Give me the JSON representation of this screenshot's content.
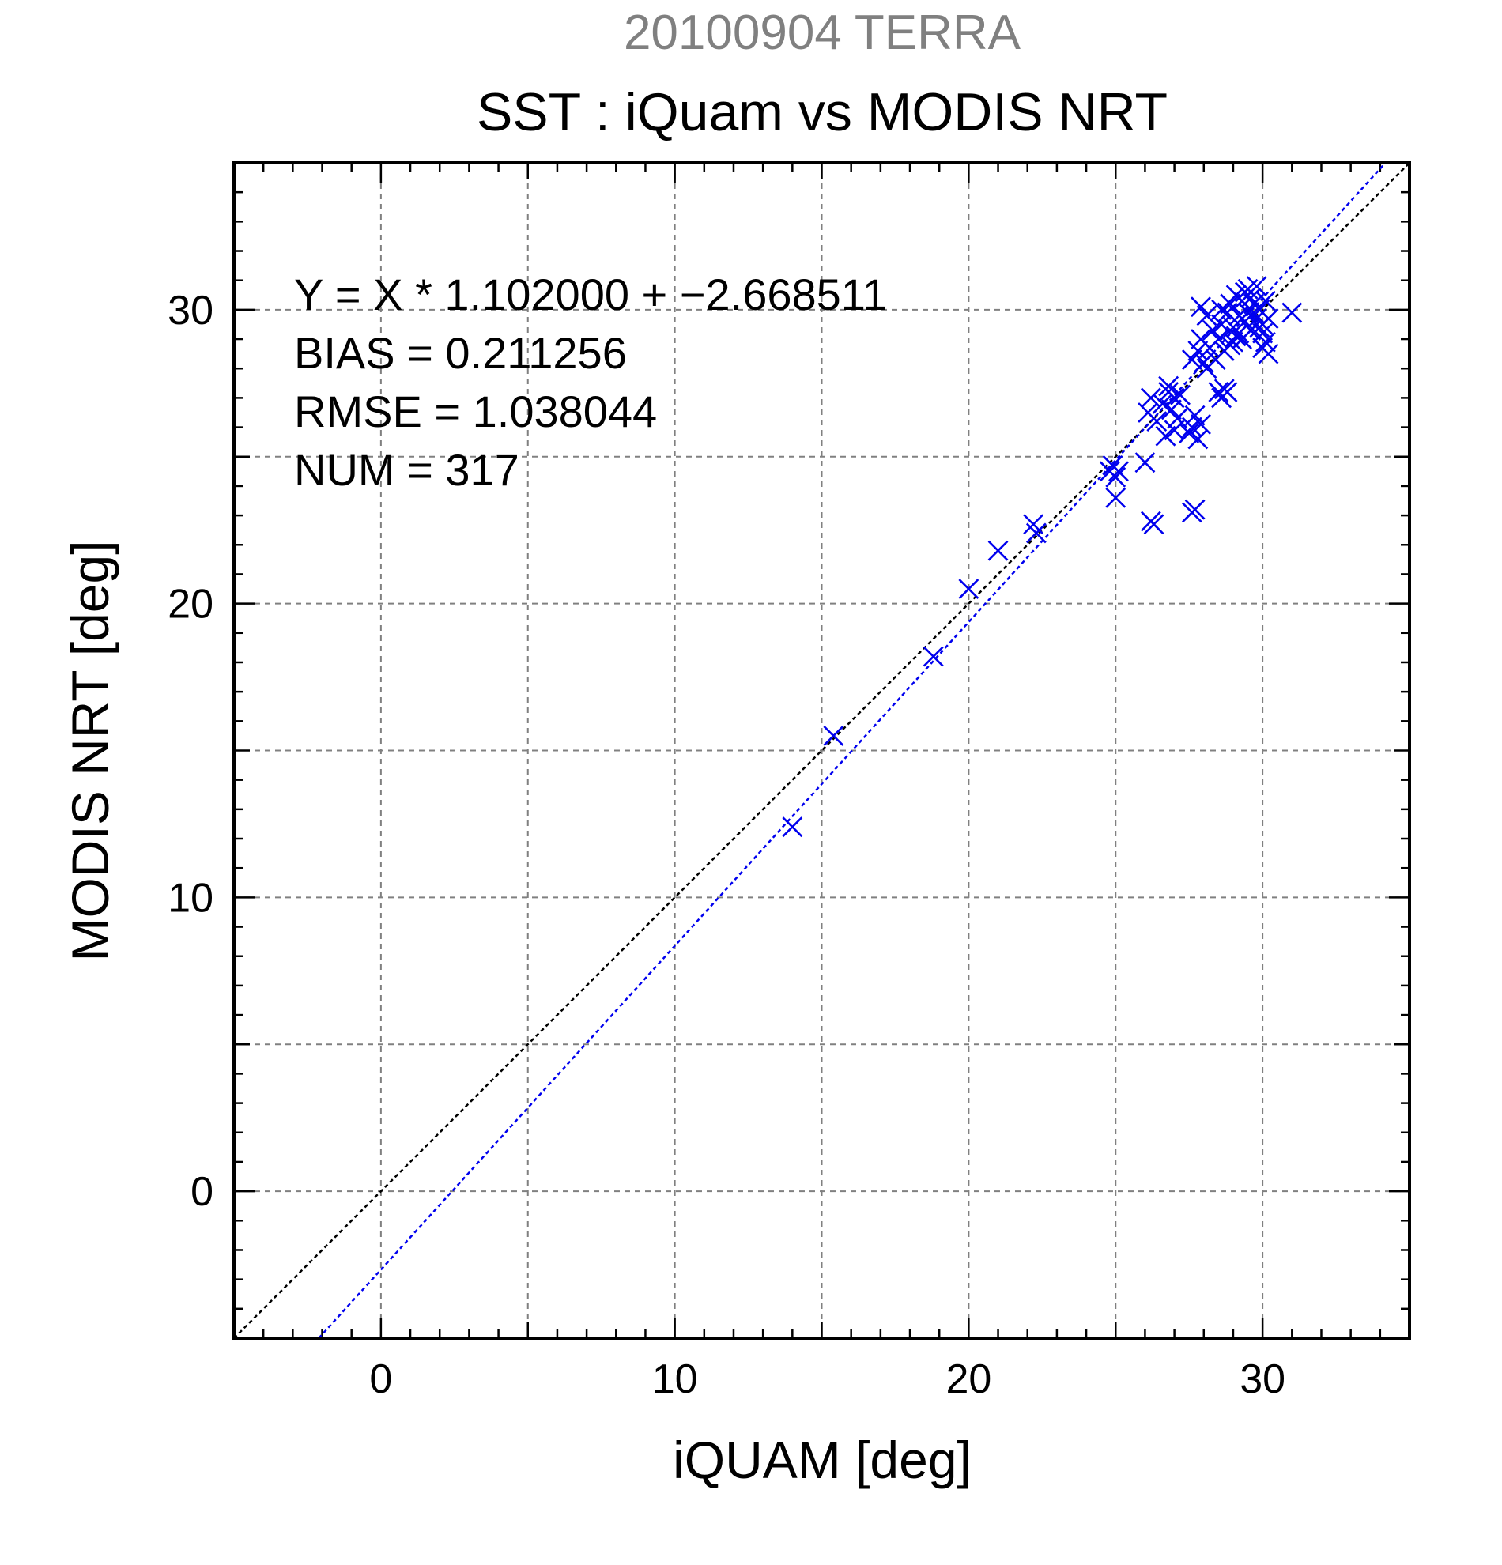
{
  "chart_data": {
    "type": "scatter",
    "title": "20100904 TERRA",
    "subtitle": "SST : iQuam vs MODIS NRT",
    "xlabel": "iQUAM [deg]",
    "ylabel": "MODIS NRT [deg]",
    "xlim": [
      -5,
      35
    ],
    "ylim": [
      -5,
      35
    ],
    "major_ticks": [
      0,
      10,
      20,
      30
    ],
    "gridlines": [
      0,
      5,
      10,
      15,
      20,
      25,
      30
    ],
    "grid": true,
    "marker": "x",
    "colors": {
      "points": "#0000ee",
      "fit_line": "#0000ee",
      "identity_line": "#000000",
      "title": "#808080"
    },
    "stats": [
      "Y = X * 1.102000 + −2.668511",
      "BIAS = 0.211256",
      "RMSE = 1.038044",
      "NUM = 317"
    ],
    "fit": {
      "slope": 1.102,
      "intercept": -2.668511
    },
    "identity": {
      "slope": 1,
      "intercept": 0
    },
    "points": [
      [
        14.0,
        12.4
      ],
      [
        15.4,
        15.5
      ],
      [
        18.8,
        18.2
      ],
      [
        20.0,
        20.5
      ],
      [
        21.0,
        21.8
      ],
      [
        22.2,
        22.7
      ],
      [
        22.3,
        22.4
      ],
      [
        24.9,
        24.7
      ],
      [
        25.0,
        24.3
      ],
      [
        25.0,
        23.6
      ],
      [
        25.1,
        24.5
      ],
      [
        24.8,
        24.5
      ],
      [
        26.0,
        24.8
      ],
      [
        26.1,
        26.5
      ],
      [
        26.2,
        27.0
      ],
      [
        26.4,
        26.2
      ],
      [
        26.3,
        22.7
      ],
      [
        26.2,
        22.8
      ],
      [
        27.6,
        23.1
      ],
      [
        27.7,
        23.2
      ],
      [
        26.6,
        26.8
      ],
      [
        26.8,
        27.2
      ],
      [
        27.0,
        27.0
      ],
      [
        26.9,
        26.6
      ],
      [
        27.0,
        25.9
      ],
      [
        26.7,
        25.7
      ],
      [
        27.1,
        26.3
      ],
      [
        26.8,
        27.4
      ],
      [
        27.2,
        27.1
      ],
      [
        27.5,
        25.8
      ],
      [
        27.6,
        26.0
      ],
      [
        27.8,
        25.6
      ],
      [
        27.9,
        26.1
      ],
      [
        27.7,
        26.4
      ],
      [
        27.6,
        28.3
      ],
      [
        27.8,
        28.6
      ],
      [
        27.9,
        29.0
      ],
      [
        28.0,
        28.2
      ],
      [
        28.1,
        29.8
      ],
      [
        27.9,
        30.1
      ],
      [
        28.2,
        28.7
      ],
      [
        28.3,
        29.3
      ],
      [
        28.1,
        28.0
      ],
      [
        28.4,
        28.3
      ],
      [
        28.5,
        27.2
      ],
      [
        28.6,
        27.0
      ],
      [
        28.7,
        27.3
      ],
      [
        28.8,
        27.2
      ],
      [
        28.5,
        29.0
      ],
      [
        28.6,
        29.5
      ],
      [
        28.7,
        28.6
      ],
      [
        28.8,
        29.9
      ],
      [
        28.9,
        30.2
      ],
      [
        28.6,
        30.0
      ],
      [
        29.0,
        29.4
      ],
      [
        29.1,
        30.5
      ],
      [
        29.2,
        29.8
      ],
      [
        29.0,
        28.9
      ],
      [
        29.3,
        30.3
      ],
      [
        29.4,
        30.6
      ],
      [
        29.2,
        29.2
      ],
      [
        29.5,
        29.9
      ],
      [
        29.6,
        30.4
      ],
      [
        29.4,
        29.6
      ],
      [
        29.7,
        30.2
      ],
      [
        29.8,
        29.7
      ],
      [
        29.5,
        30.7
      ],
      [
        29.6,
        29.3
      ],
      [
        29.9,
        30.0
      ],
      [
        30.0,
        29.5
      ],
      [
        30.1,
        30.3
      ],
      [
        29.8,
        30.8
      ],
      [
        29.3,
        29.0
      ],
      [
        30.0,
        29.2
      ],
      [
        30.1,
        28.9
      ],
      [
        30.2,
        29.7
      ],
      [
        29.9,
        29.4
      ],
      [
        30.0,
        28.7
      ],
      [
        30.2,
        28.5
      ],
      [
        29.1,
        29.1
      ],
      [
        28.9,
        28.8
      ],
      [
        29.7,
        29.9
      ],
      [
        31.0,
        29.9
      ]
    ]
  }
}
